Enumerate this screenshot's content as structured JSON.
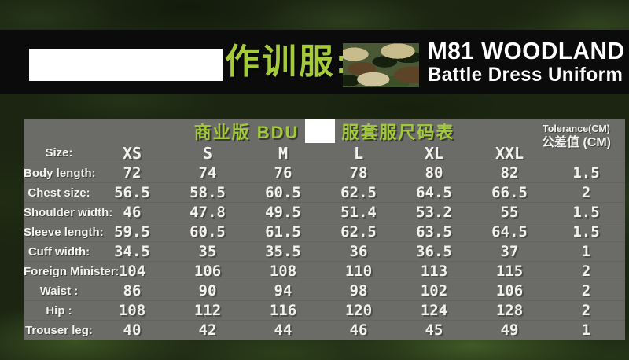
{
  "banner": {
    "chinese_title": "作训服:",
    "title_line1": "M81 WOODLAND",
    "title_line2": "Battle Dress Uniform",
    "censored_brand": "",
    "camo_swatch": "m81-woodland-pattern"
  },
  "table": {
    "title_left": "商业版 BDU",
    "title_right": "服套服尺码表",
    "censored_word": "",
    "tolerance_header_en": "Tolerance(CM)",
    "tolerance_header_cn": "公差值 (CM)",
    "size_label": "Size:",
    "sizes": [
      "XS",
      "S",
      "M",
      "L",
      "XL",
      "XXL"
    ],
    "rows": [
      {
        "label": "Body length:",
        "values": [
          "72",
          "74",
          "76",
          "78",
          "80",
          "82"
        ],
        "tolerance": "1.5"
      },
      {
        "label": "Chest size:",
        "values": [
          "56.5",
          "58.5",
          "60.5",
          "62.5",
          "64.5",
          "66.5"
        ],
        "tolerance": "2"
      },
      {
        "label": "Shoulder width:",
        "values": [
          "46",
          "47.8",
          "49.5",
          "51.4",
          "53.2",
          "55"
        ],
        "tolerance": "1.5"
      },
      {
        "label": "Sleeve length:",
        "values": [
          "59.5",
          "60.5",
          "61.5",
          "62.5",
          "63.5",
          "64.5"
        ],
        "tolerance": "1.5"
      },
      {
        "label": "Cuff width:",
        "values": [
          "34.5",
          "35",
          "35.5",
          "36",
          "36.5",
          "37"
        ],
        "tolerance": "1"
      },
      {
        "label": "Foreign Minister:",
        "values": [
          "104",
          "106",
          "108",
          "110",
          "113",
          "115"
        ],
        "tolerance": "2"
      },
      {
        "label": "Waist :",
        "values": [
          "86",
          "90",
          "94",
          "98",
          "102",
          "106"
        ],
        "tolerance": "2"
      },
      {
        "label": "Hip :",
        "values": [
          "108",
          "112",
          "116",
          "120",
          "124",
          "128"
        ],
        "tolerance": "2"
      },
      {
        "label": "Trouser leg:",
        "values": [
          "40",
          "42",
          "44",
          "46",
          "45",
          "49"
        ],
        "tolerance": "1"
      }
    ]
  },
  "colors": {
    "accent_green": "#a6cb3a",
    "banner_black": "#0b0b0b",
    "panel_gray": "#6b6b68",
    "text_white": "#f2f1ee",
    "camo_tan": "#c9bc8c",
    "camo_brown": "#5e4426",
    "camo_green": "#4a5836",
    "camo_black": "#15200f"
  }
}
